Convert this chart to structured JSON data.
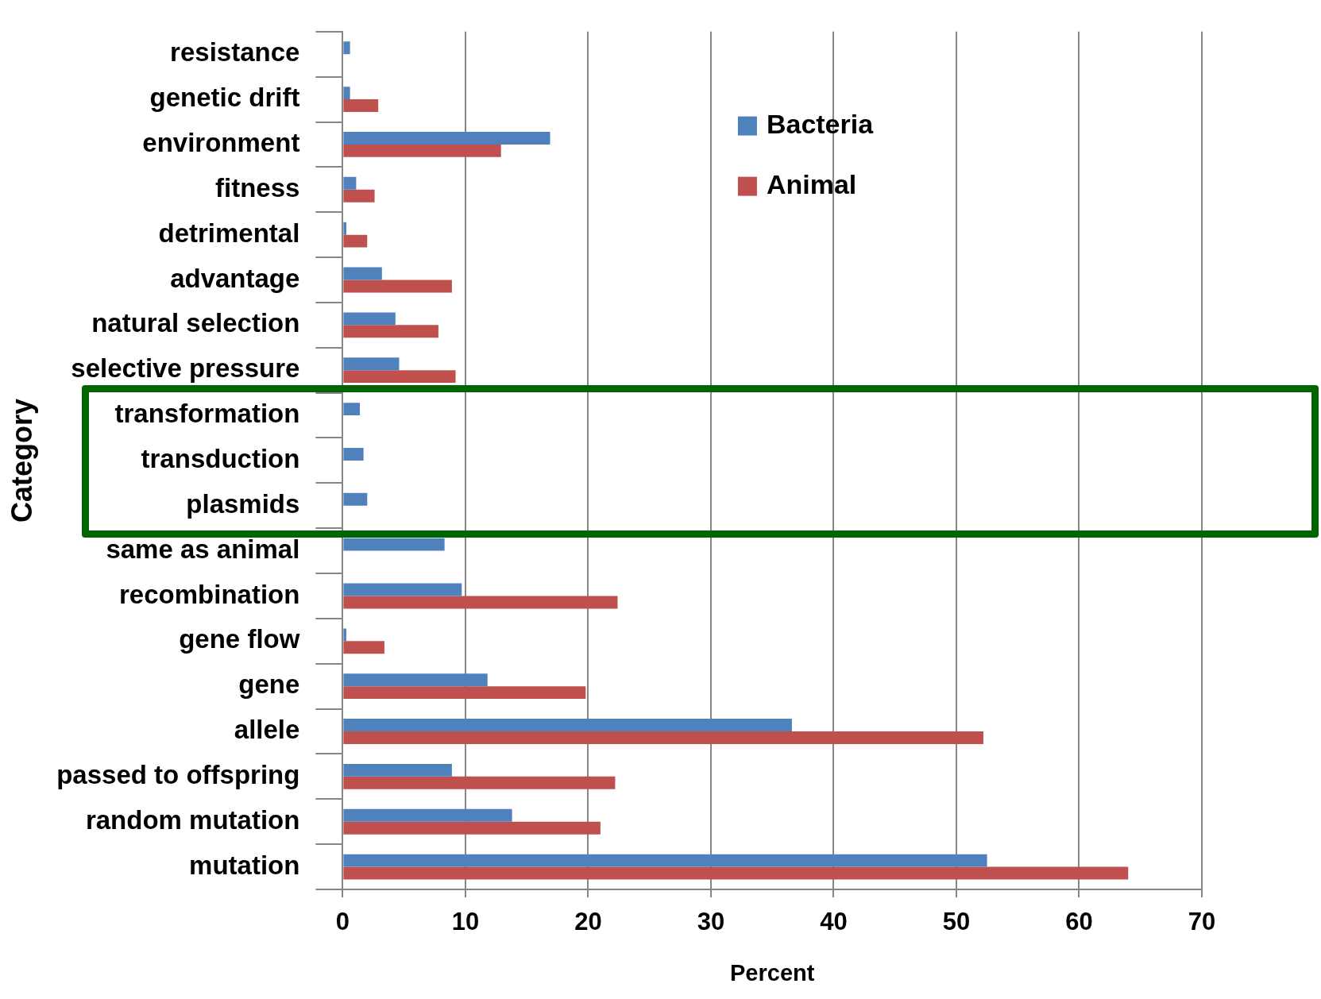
{
  "chart_data": {
    "type": "bar",
    "orientation": "horizontal",
    "xlabel": "Percent",
    "ylabel": "Category",
    "categories": [
      "resistance",
      "genetic drift",
      "environment",
      "fitness",
      "detrimental",
      "advantage",
      "natural selection",
      "selective pressure",
      "transformation",
      "transduction",
      "plasmids",
      "same as animal",
      "recombination",
      "gene flow",
      "gene",
      "allele",
      "passed to offspring",
      "random mutation",
      "mutation"
    ],
    "series": [
      {
        "name": "Bacteria",
        "color": "#4f81bd",
        "values": [
          0.6,
          0.6,
          16.9,
          1.1,
          0.3,
          3.2,
          4.3,
          4.6,
          1.4,
          1.7,
          2.0,
          8.3,
          9.7,
          0.3,
          11.8,
          36.6,
          8.9,
          13.8,
          52.5
        ]
      },
      {
        "name": "Animal",
        "color": "#c0504d",
        "values": [
          null,
          2.9,
          12.9,
          2.6,
          2.0,
          8.9,
          7.8,
          9.2,
          null,
          null,
          null,
          null,
          22.4,
          3.4,
          19.8,
          52.2,
          22.2,
          21.0,
          64.0
        ]
      }
    ],
    "xlim": [
      0,
      70
    ],
    "xticks": [
      0,
      10,
      20,
      30,
      40,
      50,
      60,
      70
    ],
    "grid": "x",
    "legend": "top right"
  }
}
